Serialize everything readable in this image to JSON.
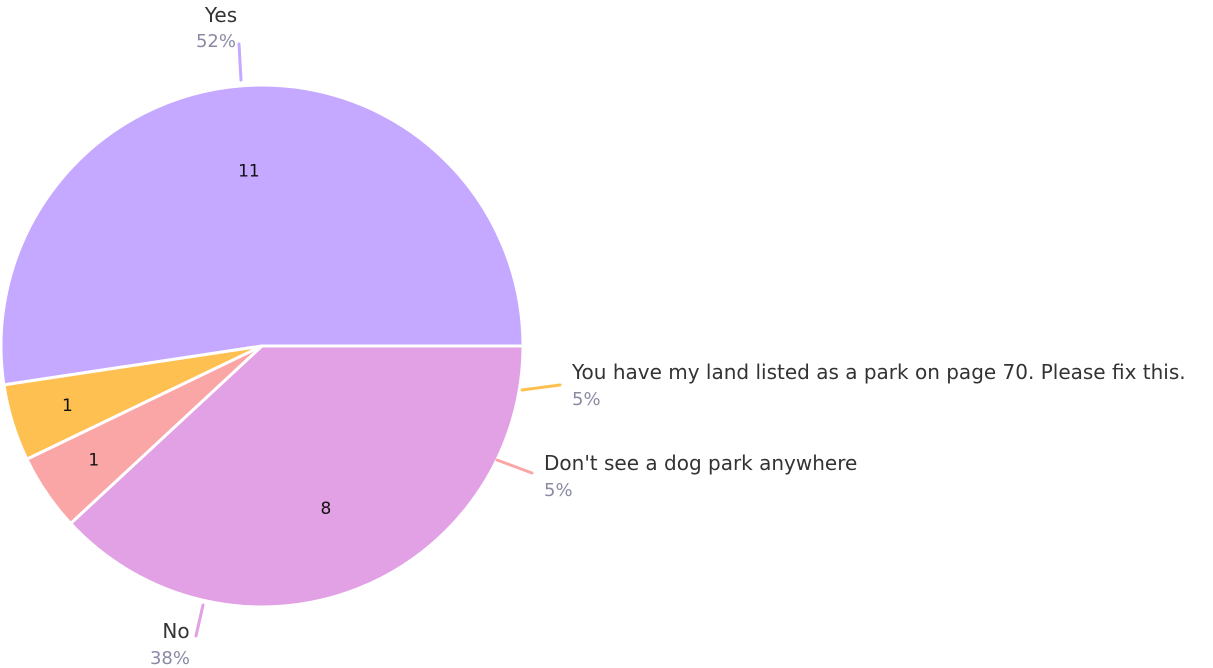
{
  "chart_data": {
    "type": "pie",
    "title": "",
    "slices": [
      {
        "label": "Yes",
        "value": 11,
        "percent": "52%",
        "color": "#c5a8ff"
      },
      {
        "label": "You have my land listed as a park on page 70. Please fix this.",
        "value": 1,
        "percent": "5%",
        "color": "#ffc052"
      },
      {
        "label": "Don't see a dog park anywhere",
        "value": 1,
        "percent": "5%",
        "color": "#fba6a6"
      },
      {
        "label": "No",
        "value": 8,
        "percent": "38%",
        "color": "#e2a1e4"
      }
    ]
  }
}
